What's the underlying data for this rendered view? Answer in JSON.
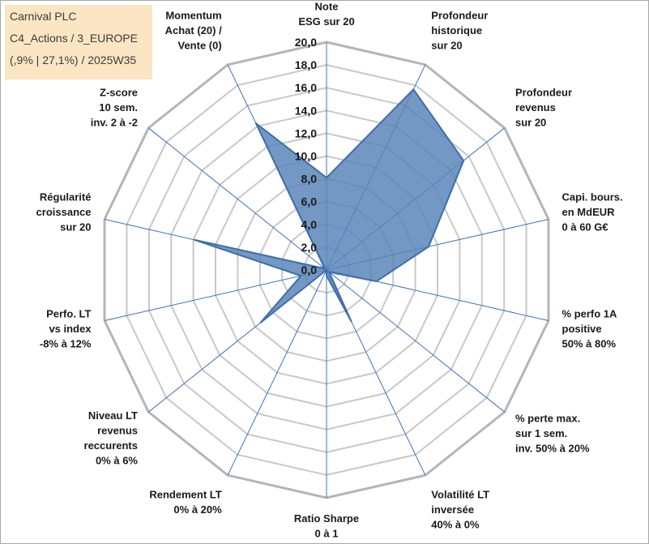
{
  "header": {
    "lines": [
      "Carnival PLC",
      "C4_Actions / 3_EUROPE",
      "(,9% | 27,1%) / 2025W35"
    ]
  },
  "chart_data": {
    "type": "radar",
    "title": "",
    "rlim": [
      0,
      20
    ],
    "ticks": [
      "0,0",
      "2,0",
      "4,0",
      "6,0",
      "8,0",
      "10,0",
      "12,0",
      "14,0",
      "16,0",
      "18,0",
      "20,0"
    ],
    "grid": true,
    "axes": [
      [
        "Note",
        "ESG sur 20"
      ],
      [
        "Profondeur",
        "historique",
        "sur 20"
      ],
      [
        "Profondeur",
        "revenus",
        "sur 20"
      ],
      [
        "Capi. bours.",
        "en MdEUR",
        "0 à 60 G€"
      ],
      [
        "% perfo 1A",
        "positive",
        "50% à 80%"
      ],
      [
        "% perte max.",
        "sur 1 sem.",
        "inv. 50% à 20%"
      ],
      [
        "Volatilité LT",
        "inversée",
        "40% à 0%"
      ],
      [
        "Ratio Sharpe",
        "0 à 1"
      ],
      [
        "Rendement LT",
        "0% à 20%"
      ],
      [
        "Niveau LT",
        "revenus",
        "reccurents",
        "0% à 6%"
      ],
      [
        "Perfo. LT",
        "vs index",
        "-8% à 12%"
      ],
      [
        "Régularité",
        "croissance",
        "sur 20"
      ],
      [
        "Z-score",
        "10 sem.",
        "inv. 2 à -2"
      ],
      [
        "Momentum",
        "Achat (20) /",
        "Vente (0)"
      ]
    ],
    "series": [
      {
        "values": [
          8.1,
          17.6,
          15.4,
          9.2,
          4.5,
          0.3,
          5.0,
          0.5,
          0.0,
          7.4,
          2.3,
          11.9,
          0.2,
          14.3
        ],
        "color": "#5b86b9"
      }
    ]
  }
}
